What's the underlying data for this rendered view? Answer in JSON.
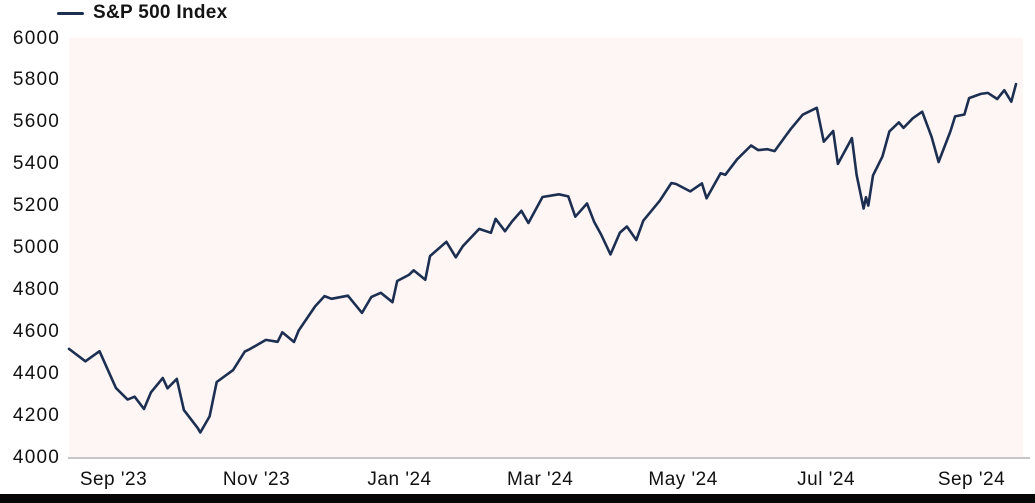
{
  "colors": {
    "line": "#1d2f51",
    "plot_bg": "#fdf6f5",
    "axis_line": "#c6c6c6",
    "text": "#111111",
    "legend_text": "#141414",
    "page_bg": "#ffffff",
    "bottom_bar": "#060606"
  },
  "chart_data": {
    "type": "line",
    "title": "",
    "legend_entries": [
      "S&P 500 Index"
    ],
    "legend_position": "top-left",
    "grid": false,
    "x_axis": {
      "domain": [
        "2023-09-01",
        "2024-10-09"
      ],
      "ticks": [
        {
          "label": "Sep '23",
          "date": "2023-09-20"
        },
        {
          "label": "Nov '23",
          "date": "2023-11-20"
        },
        {
          "label": "Jan '24",
          "date": "2024-01-20"
        },
        {
          "label": "Mar '24",
          "date": "2024-03-20"
        },
        {
          "label": "May '24",
          "date": "2024-05-20"
        },
        {
          "label": "Jul '24",
          "date": "2024-07-20"
        },
        {
          "label": "Sep '24",
          "date": "2024-09-20"
        }
      ]
    },
    "y_axis": {
      "min": 4000,
      "max": 6000,
      "step": 200,
      "ticks": [
        6000,
        5800,
        5600,
        5400,
        5200,
        5000,
        4800,
        4600,
        4400,
        4200,
        4000
      ]
    },
    "series": [
      {
        "name": "S&P 500 Index",
        "color": "#1d2f51",
        "points": [
          [
            "2023-09-01",
            4516
          ],
          [
            "2023-09-08",
            4457
          ],
          [
            "2023-09-14",
            4505
          ],
          [
            "2023-09-21",
            4330
          ],
          [
            "2023-09-26",
            4274
          ],
          [
            "2023-09-29",
            4288
          ],
          [
            "2023-10-03",
            4229
          ],
          [
            "2023-10-06",
            4309
          ],
          [
            "2023-10-11",
            4377
          ],
          [
            "2023-10-13",
            4328
          ],
          [
            "2023-10-17",
            4373
          ],
          [
            "2023-10-20",
            4224
          ],
          [
            "2023-10-26",
            4137
          ],
          [
            "2023-10-27",
            4117
          ],
          [
            "2023-10-31",
            4194
          ],
          [
            "2023-11-03",
            4358
          ],
          [
            "2023-11-10",
            4415
          ],
          [
            "2023-11-15",
            4503
          ],
          [
            "2023-11-17",
            4514
          ],
          [
            "2023-11-24",
            4559
          ],
          [
            "2023-11-29",
            4550
          ],
          [
            "2023-12-01",
            4595
          ],
          [
            "2023-12-06",
            4549
          ],
          [
            "2023-12-08",
            4604
          ],
          [
            "2023-12-15",
            4719
          ],
          [
            "2023-12-19",
            4768
          ],
          [
            "2023-12-22",
            4755
          ],
          [
            "2023-12-29",
            4770
          ],
          [
            "2024-01-04",
            4688
          ],
          [
            "2024-01-08",
            4764
          ],
          [
            "2024-01-12",
            4784
          ],
          [
            "2024-01-17",
            4739
          ],
          [
            "2024-01-19",
            4840
          ],
          [
            "2024-01-24",
            4869
          ],
          [
            "2024-01-26",
            4891
          ],
          [
            "2024-01-31",
            4846
          ],
          [
            "2024-02-02",
            4959
          ],
          [
            "2024-02-09",
            5027
          ],
          [
            "2024-02-13",
            4953
          ],
          [
            "2024-02-16",
            5006
          ],
          [
            "2024-02-23",
            5089
          ],
          [
            "2024-02-28",
            5070
          ],
          [
            "2024-03-01",
            5137
          ],
          [
            "2024-03-05",
            5078
          ],
          [
            "2024-03-08",
            5124
          ],
          [
            "2024-03-12",
            5175
          ],
          [
            "2024-03-15",
            5117
          ],
          [
            "2024-03-21",
            5241
          ],
          [
            "2024-03-28",
            5254
          ],
          [
            "2024-04-01",
            5244
          ],
          [
            "2024-04-04",
            5147
          ],
          [
            "2024-04-09",
            5210
          ],
          [
            "2024-04-12",
            5123
          ],
          [
            "2024-04-15",
            5062
          ],
          [
            "2024-04-19",
            4967
          ],
          [
            "2024-04-23",
            5071
          ],
          [
            "2024-04-26",
            5100
          ],
          [
            "2024-04-30",
            5036
          ],
          [
            "2024-05-03",
            5128
          ],
          [
            "2024-05-10",
            5223
          ],
          [
            "2024-05-15",
            5308
          ],
          [
            "2024-05-17",
            5303
          ],
          [
            "2024-05-23",
            5268
          ],
          [
            "2024-05-28",
            5306
          ],
          [
            "2024-05-30",
            5235
          ],
          [
            "2024-06-05",
            5354
          ],
          [
            "2024-06-07",
            5347
          ],
          [
            "2024-06-12",
            5421
          ],
          [
            "2024-06-18",
            5487
          ],
          [
            "2024-06-21",
            5465
          ],
          [
            "2024-06-25",
            5469
          ],
          [
            "2024-06-28",
            5460
          ],
          [
            "2024-07-03",
            5537
          ],
          [
            "2024-07-05",
            5567
          ],
          [
            "2024-07-10",
            5634
          ],
          [
            "2024-07-16",
            5667
          ],
          [
            "2024-07-19",
            5505
          ],
          [
            "2024-07-23",
            5556
          ],
          [
            "2024-07-25",
            5399
          ],
          [
            "2024-07-31",
            5522
          ],
          [
            "2024-08-02",
            5347
          ],
          [
            "2024-08-05",
            5186
          ],
          [
            "2024-08-06",
            5240
          ],
          [
            "2024-08-07",
            5200
          ],
          [
            "2024-08-09",
            5344
          ],
          [
            "2024-08-13",
            5434
          ],
          [
            "2024-08-16",
            5554
          ],
          [
            "2024-08-20",
            5597
          ],
          [
            "2024-08-22",
            5571
          ],
          [
            "2024-08-26",
            5617
          ],
          [
            "2024-08-30",
            5648
          ],
          [
            "2024-09-03",
            5528
          ],
          [
            "2024-09-06",
            5408
          ],
          [
            "2024-09-11",
            5554
          ],
          [
            "2024-09-13",
            5626
          ],
          [
            "2024-09-17",
            5635
          ],
          [
            "2024-09-19",
            5713
          ],
          [
            "2024-09-24",
            5733
          ],
          [
            "2024-09-27",
            5738
          ],
          [
            "2024-10-01",
            5709
          ],
          [
            "2024-10-04",
            5751
          ],
          [
            "2024-10-07",
            5696
          ],
          [
            "2024-10-09",
            5780
          ]
        ]
      }
    ]
  }
}
